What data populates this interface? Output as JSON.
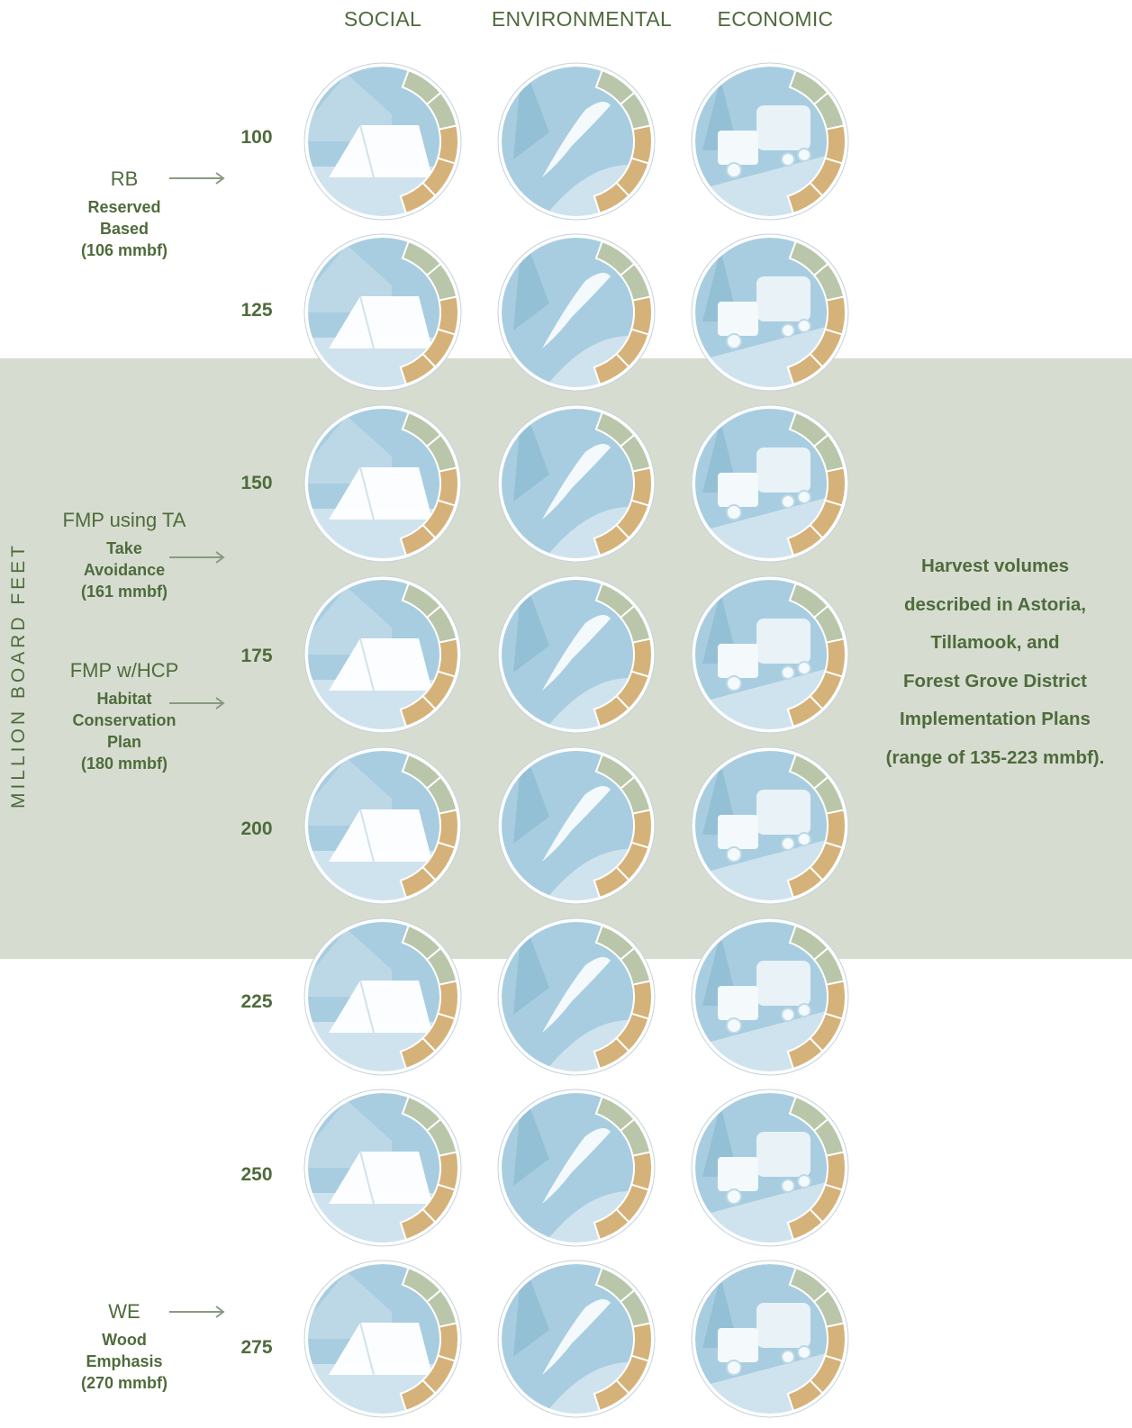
{
  "columns": [
    "SOCIAL",
    "ENVIRONMENTAL",
    "ECONOMIC"
  ],
  "column_icons": [
    "tent-icon",
    "salmon-icon",
    "logging-truck-icon"
  ],
  "y_axis_label": "MILLION BOARD FEET",
  "rows": [
    "100",
    "125",
    "150",
    "175",
    "200",
    "225",
    "250",
    "275"
  ],
  "gauge_colors": {
    "upper_segments": "#b9c6a9",
    "lower_segments": "#d5b279",
    "scene_sky": "#a8cde0",
    "scene_ground": "#cfe3ee",
    "ring": "#ffffff"
  },
  "band_color": "#d6ddd0",
  "alternatives": [
    {
      "code": "RB",
      "lines": [
        "Reserved",
        "Based",
        "(106 mmbf)"
      ]
    },
    {
      "code": "FMP using TA",
      "lines": [
        "Take",
        "Avoidance",
        "(161 mmbf)"
      ]
    },
    {
      "code": "FMP w/HCP",
      "lines": [
        "Habitat",
        "Conservation",
        "Plan",
        "(180 mmbf)"
      ]
    },
    {
      "code": "WE",
      "lines": [
        "Wood",
        "Emphasis",
        "(270 mmbf)"
      ]
    }
  ],
  "note_lines": [
    "Harvest volumes",
    "described in Astoria,",
    "Tillamook, and",
    "Forest Grove District",
    "Implementation Plans",
    "(range of 135-223 mmbf)."
  ]
}
